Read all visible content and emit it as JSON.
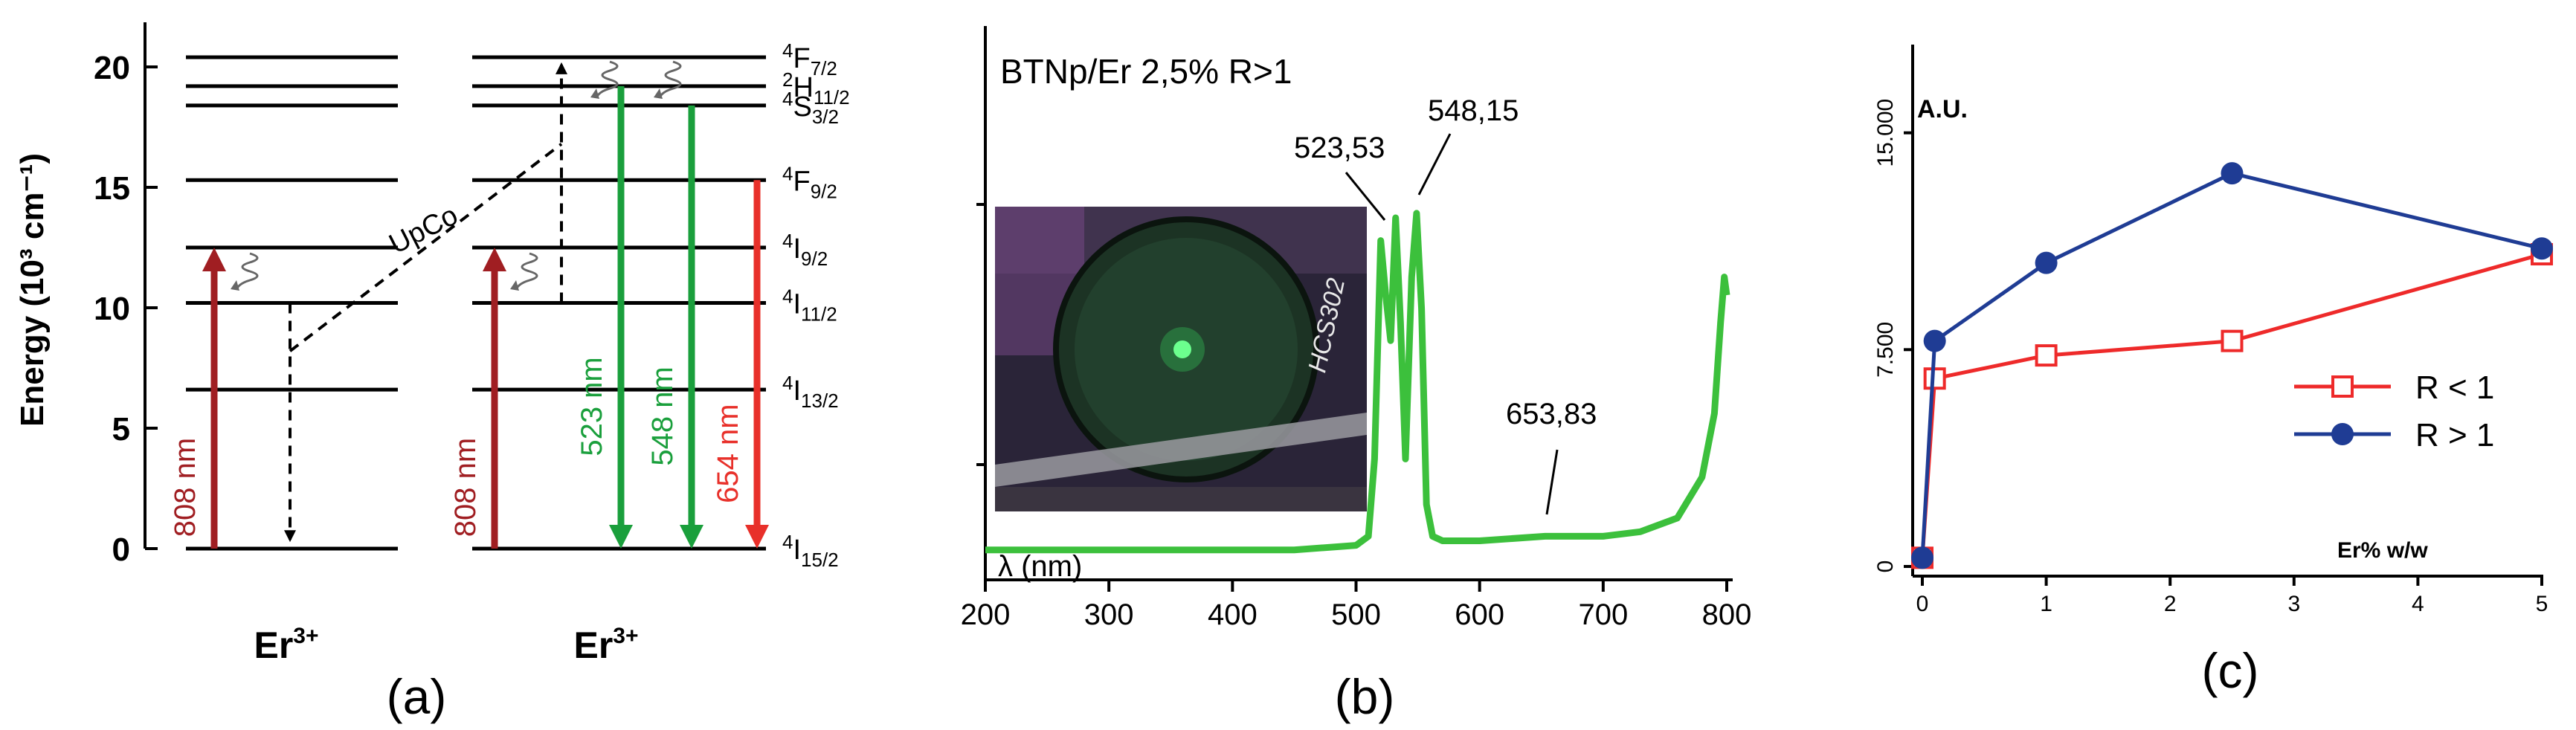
{
  "panels": {
    "a_label": "(a)",
    "b_label": "(b)",
    "c_label": "(c)"
  },
  "chart_data": [
    {
      "type": "diagram",
      "panel": "a",
      "ylabel": "Energy (10³ cm⁻¹)",
      "ylim": [
        0,
        21.5
      ],
      "yticks": [
        0,
        5,
        10,
        15,
        20
      ],
      "ion_label": "Er",
      "ion_charge": "3+",
      "levels": [
        {
          "term": "4I15/2",
          "sup": "4",
          "main": "I",
          "sub": "15/2",
          "energy": 0
        },
        {
          "term": "4I13/2",
          "sup": "4",
          "main": "I",
          "sub": "13/2",
          "energy": 6.6
        },
        {
          "term": "4I11/2",
          "sup": "4",
          "main": "I",
          "sub": "11/2",
          "energy": 10.2
        },
        {
          "term": "4I9/2",
          "sup": "4",
          "main": "I",
          "sub": "9/2",
          "energy": 12.5
        },
        {
          "term": "4F9/2",
          "sup": "4",
          "main": "F",
          "sub": "9/2",
          "energy": 15.3
        },
        {
          "term": "4S3/2",
          "sup": "4",
          "main": "S",
          "sub": "3/2",
          "energy": 18.4
        },
        {
          "term": "2H11/2",
          "sup": "2",
          "main": "H",
          "sub": "11/2",
          "energy": 19.2
        },
        {
          "term": "4F7/2",
          "sup": "4",
          "main": "F",
          "sub": "7/2",
          "energy": 20.4
        }
      ],
      "transitions": [
        {
          "label": "808 nm",
          "color": "#a01e22",
          "kind": "excitation"
        },
        {
          "label": "808 nm",
          "color": "#a01e22",
          "kind": "excitation"
        },
        {
          "label": "523 nm",
          "color": "#1a9f3c",
          "kind": "emission"
        },
        {
          "label": "548 nm",
          "color": "#1a9f3c",
          "kind": "emission"
        },
        {
          "label": "654 nm",
          "color": "#e8302a",
          "kind": "emission"
        }
      ],
      "upconversion_label": "UpCo"
    },
    {
      "type": "line",
      "panel": "b",
      "title": "BTNp/Er 2,5% R>1",
      "xlabel": "λ (nm)",
      "xlim": [
        200,
        800
      ],
      "xticks": [
        200,
        300,
        400,
        500,
        600,
        700,
        800
      ],
      "series_color": "#3cc03c",
      "peaks": [
        {
          "label": "523,53",
          "x": 523.53
        },
        {
          "label": "548,15",
          "x": 548.15
        },
        {
          "label": "653,83",
          "x": 653.83
        }
      ],
      "x": [
        200,
        250,
        300,
        350,
        400,
        450,
        500,
        510,
        515,
        520,
        524,
        528,
        532,
        536,
        540,
        545,
        549,
        553,
        557,
        562,
        570,
        600,
        653,
        700,
        730,
        760,
        780,
        790,
        795,
        798,
        800
      ],
      "y": [
        0.02,
        0.02,
        0.02,
        0.02,
        0.02,
        0.02,
        0.03,
        0.05,
        0.22,
        0.7,
        0.58,
        0.48,
        0.75,
        0.52,
        0.22,
        0.62,
        0.76,
        0.55,
        0.12,
        0.05,
        0.04,
        0.04,
        0.05,
        0.05,
        0.06,
        0.09,
        0.18,
        0.32,
        0.52,
        0.62,
        0.58
      ],
      "inset": {
        "text": "HCS302"
      }
    },
    {
      "type": "line",
      "panel": "c",
      "ylabel": "A.U.",
      "xlabel": "Er%  w/w",
      "xlim": [
        0,
        5
      ],
      "ylim": [
        0,
        18000
      ],
      "xticks": [
        0,
        1,
        2,
        3,
        4,
        5
      ],
      "yticks": [
        {
          "v": 0,
          "label": "0"
        },
        {
          "v": 7500,
          "label": "7.500"
        },
        {
          "v": 15000,
          "label": "15.000"
        }
      ],
      "legend_position": "right",
      "series": [
        {
          "name": "R < 1",
          "color": "#ee2a2a",
          "marker": "square-open",
          "x": [
            0,
            0.1,
            1,
            2.5,
            5
          ],
          "y": [
            300,
            6500,
            7300,
            7800,
            10800
          ]
        },
        {
          "name": "R > 1",
          "color": "#1f3c94",
          "marker": "circle-filled",
          "x": [
            0,
            0.1,
            1,
            2.5,
            5
          ],
          "y": [
            300,
            7800,
            10500,
            13600,
            11000
          ]
        }
      ]
    }
  ]
}
